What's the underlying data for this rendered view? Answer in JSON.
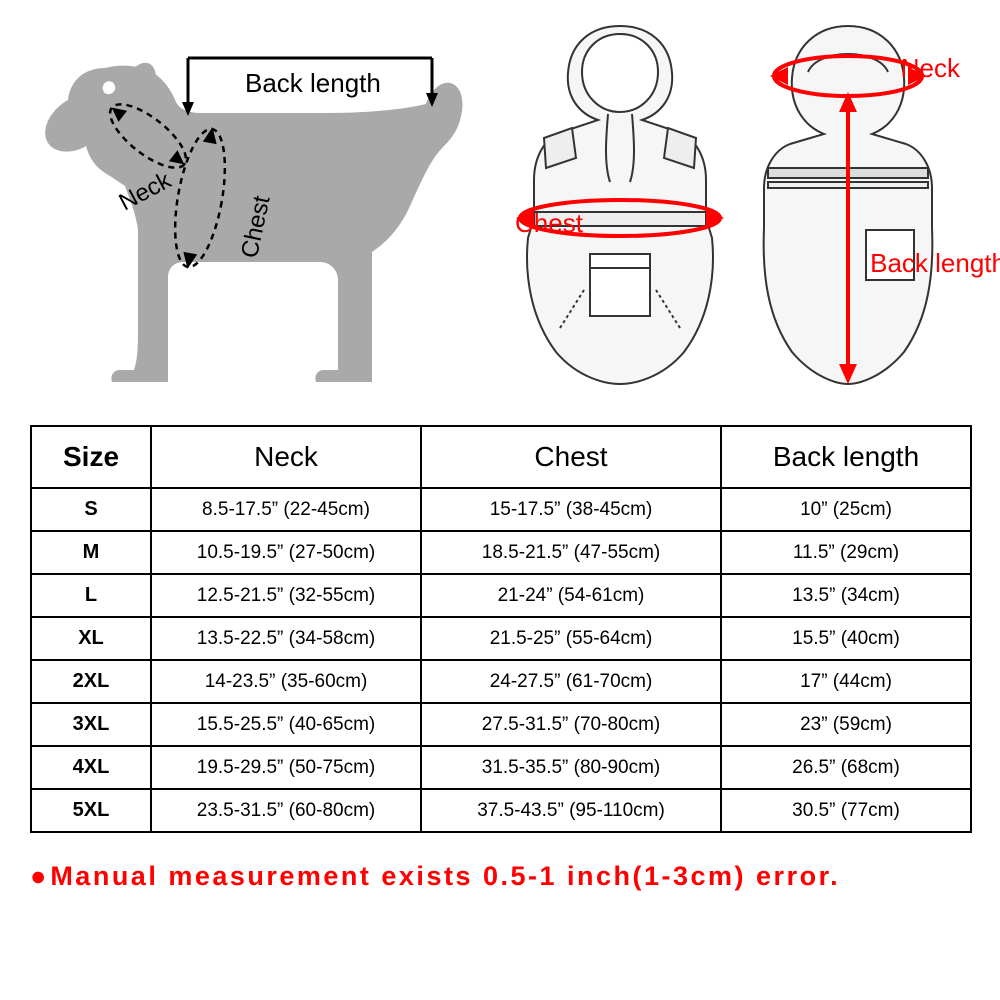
{
  "diagram": {
    "dog_labels": {
      "back_length": "Back length",
      "neck": "Neck",
      "chest": "Chest"
    },
    "coat_labels": {
      "neck": "Neck",
      "chest": "Chest",
      "back_length": "Back length"
    },
    "annotation_color": "#ff0000",
    "dog_fill": "#a9a9a9",
    "label_color_black": "#000000"
  },
  "table": {
    "columns": [
      "Size",
      "Neck",
      "Chest",
      "Back length"
    ],
    "rows": [
      [
        "S",
        "8.5-17.5”  (22-45cm)",
        "15-17.5”  (38-45cm)",
        "10”  (25cm)"
      ],
      [
        "M",
        "10.5-19.5”  (27-50cm)",
        "18.5-21.5”  (47-55cm)",
        "11.5”  (29cm)"
      ],
      [
        "L",
        "12.5-21.5”  (32-55cm)",
        "21-24”  (54-61cm)",
        "13.5”  (34cm)"
      ],
      [
        "XL",
        "13.5-22.5”  (34-58cm)",
        "21.5-25”  (55-64cm)",
        "15.5”  (40cm)"
      ],
      [
        "2XL",
        "14-23.5”  (35-60cm)",
        "24-27.5”  (61-70cm)",
        "17”  (44cm)"
      ],
      [
        "3XL",
        "15.5-25.5”  (40-65cm)",
        "27.5-31.5”  (70-80cm)",
        "23”  (59cm)"
      ],
      [
        "4XL",
        "19.5-29.5”  (50-75cm)",
        "31.5-35.5”  (80-90cm)",
        "26.5”  (68cm)"
      ],
      [
        "5XL",
        "23.5-31.5”  (60-80cm)",
        "37.5-43.5”  (95-110cm)",
        "30.5”  (77cm)"
      ]
    ],
    "border_color": "#000000",
    "header_fontsize": 28,
    "cell_fontsize": 19
  },
  "footnote": "Manual measurement exists 0.5-1 inch(1-3cm) error."
}
